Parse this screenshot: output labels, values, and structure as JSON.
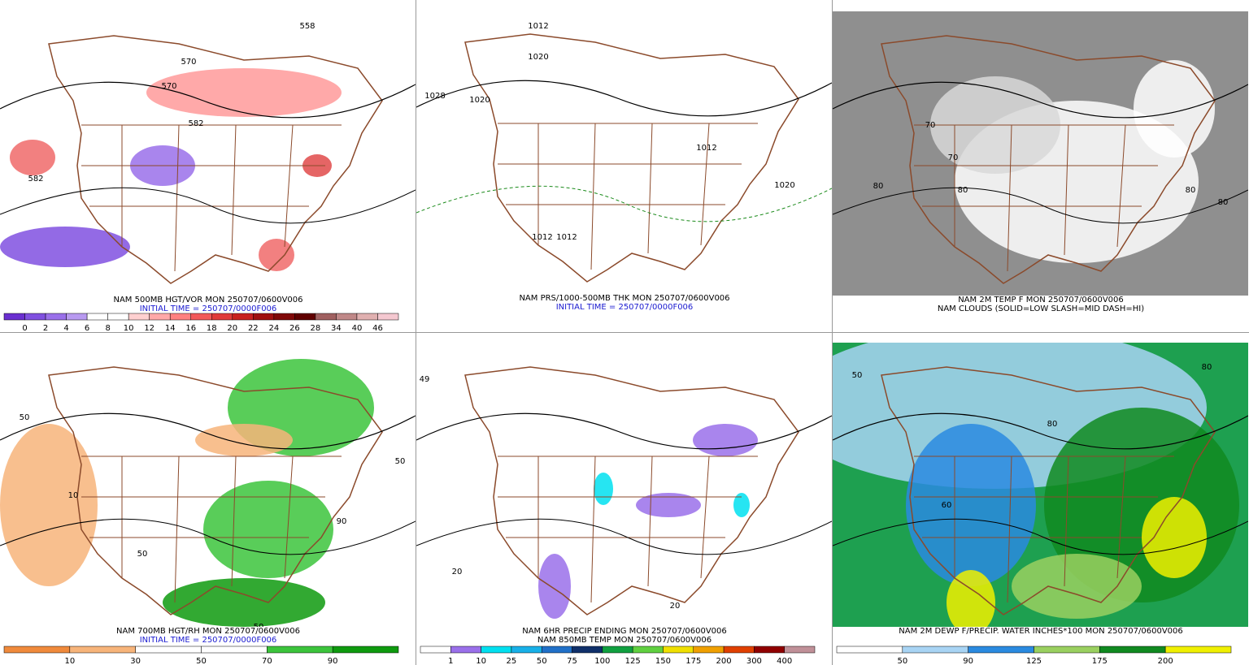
{
  "panels": [
    {
      "captions": [
        "NAM 500MB HGT/VOR MON 250707/0600V006",
        "INITIAL TIME = 250707/0000F006"
      ],
      "background": "#ffffff",
      "labels": [
        "558",
        "570",
        "582",
        "582",
        "570"
      ],
      "colorbar": {
        "labels": [
          "0",
          "2",
          "4",
          "6",
          "8",
          "10",
          "12",
          "14",
          "16",
          "18",
          "20",
          "22",
          "24",
          "26",
          "28",
          "34",
          "40",
          "46"
        ],
        "colors": [
          "#6a2fd0",
          "#8050e0",
          "#9a70ea",
          "#b89af0",
          "#ffffff",
          "#ffffff",
          "#ffd0d0",
          "#ffa8a8",
          "#ff8080",
          "#f25858",
          "#e03a3a",
          "#c82020",
          "#a01010",
          "#800808",
          "#600000",
          "#a06060",
          "#c08888",
          "#e0b0b0",
          "#f4c8d0"
        ]
      }
    },
    {
      "captions": [
        "NAM PRS/1000-500MB THK MON 250707/0600V006",
        "INITIAL TIME = 250707/0000F006"
      ],
      "background": "#ffffff",
      "labels": [
        "1012",
        "1020",
        "1028",
        "1020",
        "1012",
        "1012",
        "1012",
        "1020"
      ]
    },
    {
      "captions": [
        "NAM 2M TEMP F MON 250707/0600V006",
        "NAM CLOUDS (SOLID=LOW SLASH=MID DASH=HI)"
      ],
      "background": "#8f8f8f",
      "labels": [
        "80",
        "70",
        "80",
        "80",
        "80",
        "70"
      ]
    },
    {
      "captions": [
        "NAM 700MB HGT/RH MON 250707/0600V006",
        "INITIAL TIME = 250707/0000F006"
      ],
      "background": "#ffffff",
      "labels": [
        "50",
        "10",
        "90",
        "50",
        "50",
        "50"
      ],
      "colorbar": {
        "labels": [
          "10",
          "30",
          "50",
          "70",
          "90"
        ],
        "colors": [
          "#f08a3c",
          "#f7b47a",
          "#ffffff",
          "#ffffff",
          "#3cc43c",
          "#0e9a0e"
        ]
      }
    },
    {
      "captions": [
        "NAM 6HR PRECIP ENDING MON 250707/0600V006",
        "NAM 850MB TEMP MON 250707/0600V006"
      ],
      "background": "#ffffff",
      "labels": [
        "49",
        "20",
        "20"
      ],
      "colorbar": {
        "labels": [
          "1",
          "10",
          "25",
          "50",
          "75",
          "100",
          "125",
          "150",
          "175",
          "200",
          "300",
          "400"
        ],
        "colors": [
          "#ffffff",
          "#9a70ea",
          "#00e0f0",
          "#18b0e8",
          "#2070c8",
          "#10306a",
          "#10a040",
          "#60d040",
          "#f0e000",
          "#f0a000",
          "#e04000",
          "#900000",
          "#c09098"
        ]
      }
    },
    {
      "captions": [
        "NAM 2M DEWP F/PRECIP. WATER INCHES*100 MON 250707/0600V006"
      ],
      "background": "#1ea050",
      "labels": [
        "50",
        "60",
        "80",
        "80"
      ],
      "colorbar": {
        "labels": [
          "50",
          "90",
          "125",
          "175",
          "200"
        ],
        "colors": [
          "#ffffff",
          "#a8d4f4",
          "#2a8ae0",
          "#9ad060",
          "#108a20",
          "#f0f000"
        ]
      }
    }
  ]
}
